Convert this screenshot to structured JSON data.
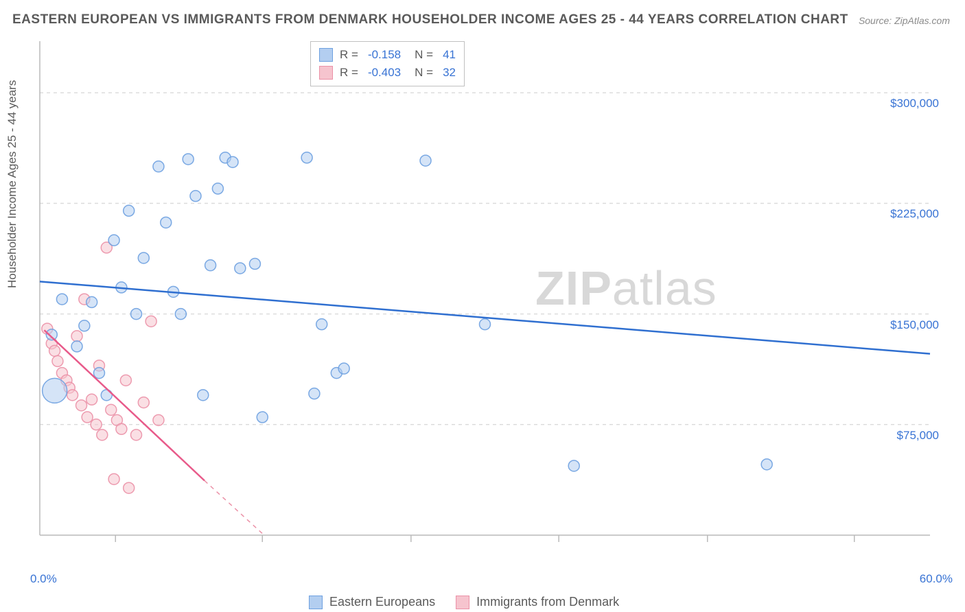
{
  "title": "EASTERN EUROPEAN VS IMMIGRANTS FROM DENMARK HOUSEHOLDER INCOME AGES 25 - 44 YEARS CORRELATION CHART",
  "source": "Source: ZipAtlas.com",
  "y_axis_label": "Householder Income Ages 25 - 44 years",
  "watermark_bold": "ZIP",
  "watermark_rest": "atlas",
  "series": [
    {
      "name": "Eastern Europeans",
      "color_fill": "#b3cef0",
      "color_stroke": "#6da0e0",
      "line_color": "#2f6fd0",
      "r_value": "-0.158",
      "n_value": "41"
    },
    {
      "name": "Immigrants from Denmark",
      "color_fill": "#f6c4ce",
      "color_stroke": "#eb91a7",
      "line_color": "#e85a8a",
      "r_value": "-0.403",
      "n_value": "32"
    }
  ],
  "x_axis": {
    "min": 0.0,
    "max": 60.0,
    "label_min": "0.0%",
    "label_max": "60.0%",
    "ticks_pct": [
      8.5,
      25,
      41.7,
      58.3,
      75,
      91.5
    ]
  },
  "y_axis": {
    "min": 0,
    "max": 335000,
    "grid_values": [
      75000,
      150000,
      225000,
      300000
    ],
    "labels": [
      "$75,000",
      "$150,000",
      "$225,000",
      "$300,000"
    ]
  },
  "trend_lines": {
    "blue": {
      "x1_pct": 0,
      "y1_val": 172000,
      "x2_pct": 100,
      "y2_val": 123000
    },
    "pink_solid": {
      "x1_pct": 0.5,
      "y1_val": 139000,
      "x2_pct": 18.5,
      "y2_val": 37000
    },
    "pink_dash": {
      "x1_pct": 18.5,
      "y1_val": 37000,
      "x2_pct": 25.2,
      "y2_val": 0
    }
  },
  "points_blue": [
    {
      "x": 1.0,
      "y": 98000,
      "r": 18
    },
    {
      "x": 0.8,
      "y": 136000,
      "r": 8
    },
    {
      "x": 1.5,
      "y": 160000,
      "r": 8
    },
    {
      "x": 2.5,
      "y": 128000,
      "r": 8
    },
    {
      "x": 3.0,
      "y": 142000,
      "r": 8
    },
    {
      "x": 3.5,
      "y": 158000,
      "r": 8
    },
    {
      "x": 4.0,
      "y": 110000,
      "r": 8
    },
    {
      "x": 4.5,
      "y": 95000,
      "r": 8
    },
    {
      "x": 5.0,
      "y": 200000,
      "r": 8
    },
    {
      "x": 5.5,
      "y": 168000,
      "r": 8
    },
    {
      "x": 6.0,
      "y": 220000,
      "r": 8
    },
    {
      "x": 6.5,
      "y": 150000,
      "r": 8
    },
    {
      "x": 7.0,
      "y": 188000,
      "r": 8
    },
    {
      "x": 8.0,
      "y": 250000,
      "r": 8
    },
    {
      "x": 8.5,
      "y": 212000,
      "r": 8
    },
    {
      "x": 9.0,
      "y": 165000,
      "r": 8
    },
    {
      "x": 9.5,
      "y": 150000,
      "r": 8
    },
    {
      "x": 10.0,
      "y": 255000,
      "r": 8
    },
    {
      "x": 10.5,
      "y": 230000,
      "r": 8
    },
    {
      "x": 11.0,
      "y": 95000,
      "r": 8
    },
    {
      "x": 11.5,
      "y": 183000,
      "r": 8
    },
    {
      "x": 12.0,
      "y": 235000,
      "r": 8
    },
    {
      "x": 12.5,
      "y": 256000,
      "r": 8
    },
    {
      "x": 13.0,
      "y": 253000,
      "r": 8
    },
    {
      "x": 13.5,
      "y": 181000,
      "r": 8
    },
    {
      "x": 14.5,
      "y": 184000,
      "r": 8
    },
    {
      "x": 15.0,
      "y": 80000,
      "r": 8
    },
    {
      "x": 18.0,
      "y": 256000,
      "r": 8
    },
    {
      "x": 18.5,
      "y": 96000,
      "r": 8
    },
    {
      "x": 19.0,
      "y": 143000,
      "r": 8
    },
    {
      "x": 20.0,
      "y": 110000,
      "r": 8
    },
    {
      "x": 20.5,
      "y": 113000,
      "r": 8
    },
    {
      "x": 26.0,
      "y": 254000,
      "r": 8
    },
    {
      "x": 30.0,
      "y": 143000,
      "r": 8
    },
    {
      "x": 36.0,
      "y": 47000,
      "r": 8
    },
    {
      "x": 49.0,
      "y": 48000,
      "r": 8
    }
  ],
  "points_pink": [
    {
      "x": 0.5,
      "y": 140000,
      "r": 8
    },
    {
      "x": 0.8,
      "y": 130000,
      "r": 8
    },
    {
      "x": 1.0,
      "y": 125000,
      "r": 8
    },
    {
      "x": 1.2,
      "y": 118000,
      "r": 8
    },
    {
      "x": 1.5,
      "y": 110000,
      "r": 8
    },
    {
      "x": 1.8,
      "y": 105000,
      "r": 8
    },
    {
      "x": 2.0,
      "y": 100000,
      "r": 8
    },
    {
      "x": 2.2,
      "y": 95000,
      "r": 8
    },
    {
      "x": 2.5,
      "y": 135000,
      "r": 8
    },
    {
      "x": 2.8,
      "y": 88000,
      "r": 8
    },
    {
      "x": 3.0,
      "y": 160000,
      "r": 8
    },
    {
      "x": 3.2,
      "y": 80000,
      "r": 8
    },
    {
      "x": 3.5,
      "y": 92000,
      "r": 8
    },
    {
      "x": 3.8,
      "y": 75000,
      "r": 8
    },
    {
      "x": 4.0,
      "y": 115000,
      "r": 8
    },
    {
      "x": 4.2,
      "y": 68000,
      "r": 8
    },
    {
      "x": 4.5,
      "y": 195000,
      "r": 8
    },
    {
      "x": 4.8,
      "y": 85000,
      "r": 8
    },
    {
      "x": 5.0,
      "y": 38000,
      "r": 8
    },
    {
      "x": 5.2,
      "y": 78000,
      "r": 8
    },
    {
      "x": 5.5,
      "y": 72000,
      "r": 8
    },
    {
      "x": 5.8,
      "y": 105000,
      "r": 8
    },
    {
      "x": 6.0,
      "y": 32000,
      "r": 8
    },
    {
      "x": 6.5,
      "y": 68000,
      "r": 8
    },
    {
      "x": 7.0,
      "y": 90000,
      "r": 8
    },
    {
      "x": 7.5,
      "y": 145000,
      "r": 8
    },
    {
      "x": 8.0,
      "y": 78000,
      "r": 8
    }
  ],
  "chart_style": {
    "background": "#ffffff",
    "grid_color": "#dcdcdc",
    "axis_color": "#bababa",
    "marker_opacity": 0.55,
    "line_width": 2.5
  }
}
